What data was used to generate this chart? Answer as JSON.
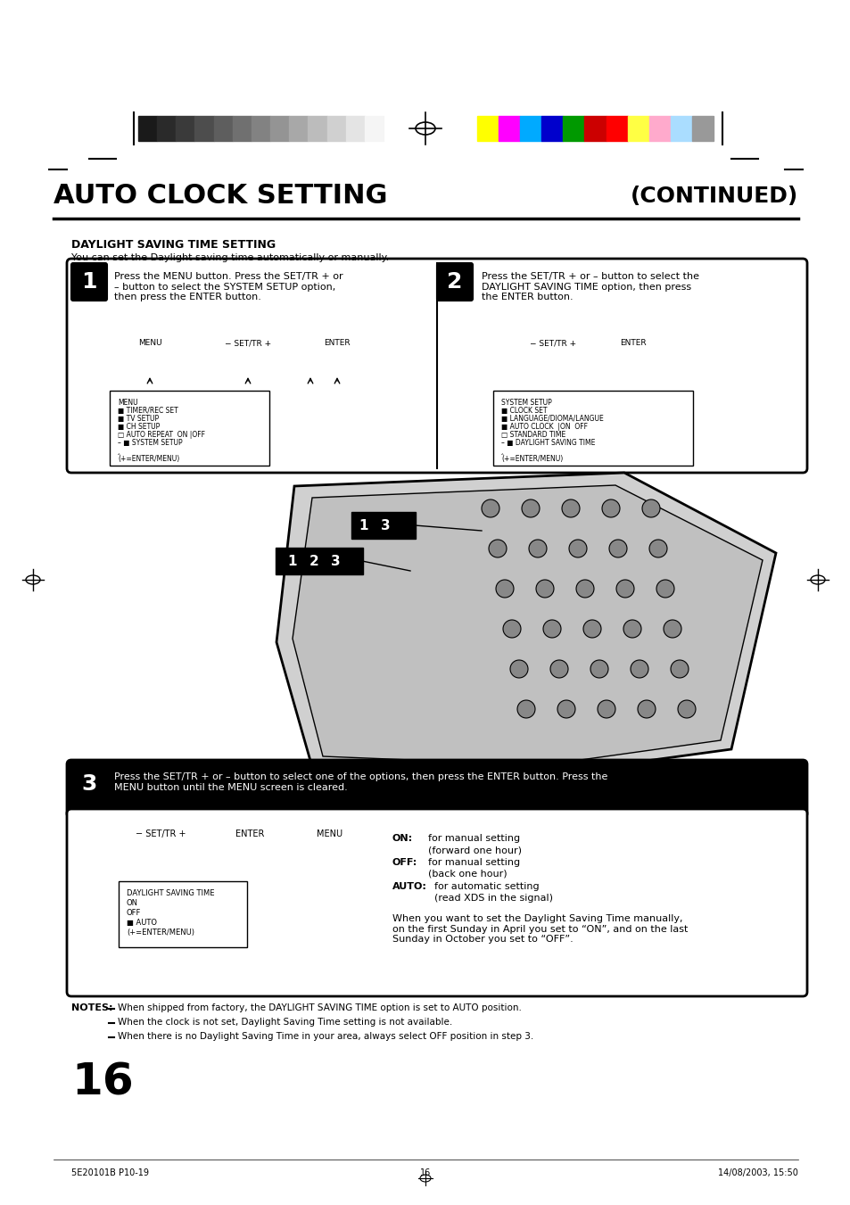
{
  "title": "AUTO CLOCK SETTING",
  "title_right": "(CONTINUED)",
  "section_title": "DAYLIGHT SAVING TIME SETTING",
  "section_subtitle": "You can set the Daylight saving time automatically or manually.",
  "step1_text": "Press the MENU button. Press the SET/TR + or\n– button to select the SYSTEM SETUP option,\nthen press the ENTER button.",
  "step2_text": "Press the SET/TR + or – button to select the\nDAYLIGHT SAVING TIME option, then press\nthe ENTER button.",
  "step3_text": "Press the SET/TR + or – button to select one of the options, then press the ENTER button. Press the\nMENU button until the MENU screen is cleared.",
  "menu1_lines": [
    "MENU",
    "■ TIMER/REC SET",
    "■ TV SETUP",
    "■ CH SETUP",
    "□ AUTO REPEAT  ON |OFF",
    "– ■ SYSTEM SETUP",
    "‸",
    "(+=ENTER/MENU)"
  ],
  "menu2_lines": [
    "SYSTEM SETUP",
    "■ CLOCK SET",
    "■ LANGUAGE/DIOMA/LANGUE",
    "■ AUTO CLOCK  |ON  OFF",
    "□ STANDARD TIME",
    "– ■ DAYLIGHT SAVING TIME",
    "‸",
    "(+=ENTER/MENU)"
  ],
  "dst_menu_lines": [
    "DAYLIGHT SAVING TIME",
    "ON",
    "OFF",
    "■ AUTO",
    "(+=ENTER/MENU)"
  ],
  "on_label": "ON:",
  "on_text1": "for manual setting",
  "on_text2": "(forward one hour)",
  "off_label": "OFF:",
  "off_text1": "for manual setting",
  "off_text2": "(back one hour)",
  "auto_label": "AUTO:",
  "auto_text1": "for automatic setting",
  "auto_text2": "(read XDS in the signal)",
  "when_text": "When you want to set the Daylight Saving Time manually,\non the first Sunday in April you set to “ON”, and on the last\nSunday in October you set to “OFF”.",
  "notes": [
    "When shipped from factory, the DAYLIGHT SAVING TIME option is set to AUTO position.",
    "When the clock is not set, Daylight Saving Time setting is not available.",
    "When there is no Daylight Saving Time in your area, always select OFF position in step 3."
  ],
  "page_number": "16",
  "footer_left": "5E20101B P10-19",
  "footer_center": "16",
  "footer_right": "14/08/2003, 15:50",
  "bg_color": "#ffffff",
  "text_color": "#000000",
  "grayscale_colors": [
    "#1a1a1a",
    "#2a2a2a",
    "#3a3a3a",
    "#4d4d4d",
    "#5e5e5e",
    "#707070",
    "#828282",
    "#949494",
    "#a8a8a8",
    "#bcbcbc",
    "#d0d0d0",
    "#e4e4e4",
    "#f5f5f5"
  ],
  "color_bars": [
    "#ffff00",
    "#ff00ff",
    "#00aaff",
    "#0000cc",
    "#009900",
    "#cc0000",
    "#ff0000",
    "#ffff44",
    "#ffaacc",
    "#aaddff",
    "#999999"
  ]
}
